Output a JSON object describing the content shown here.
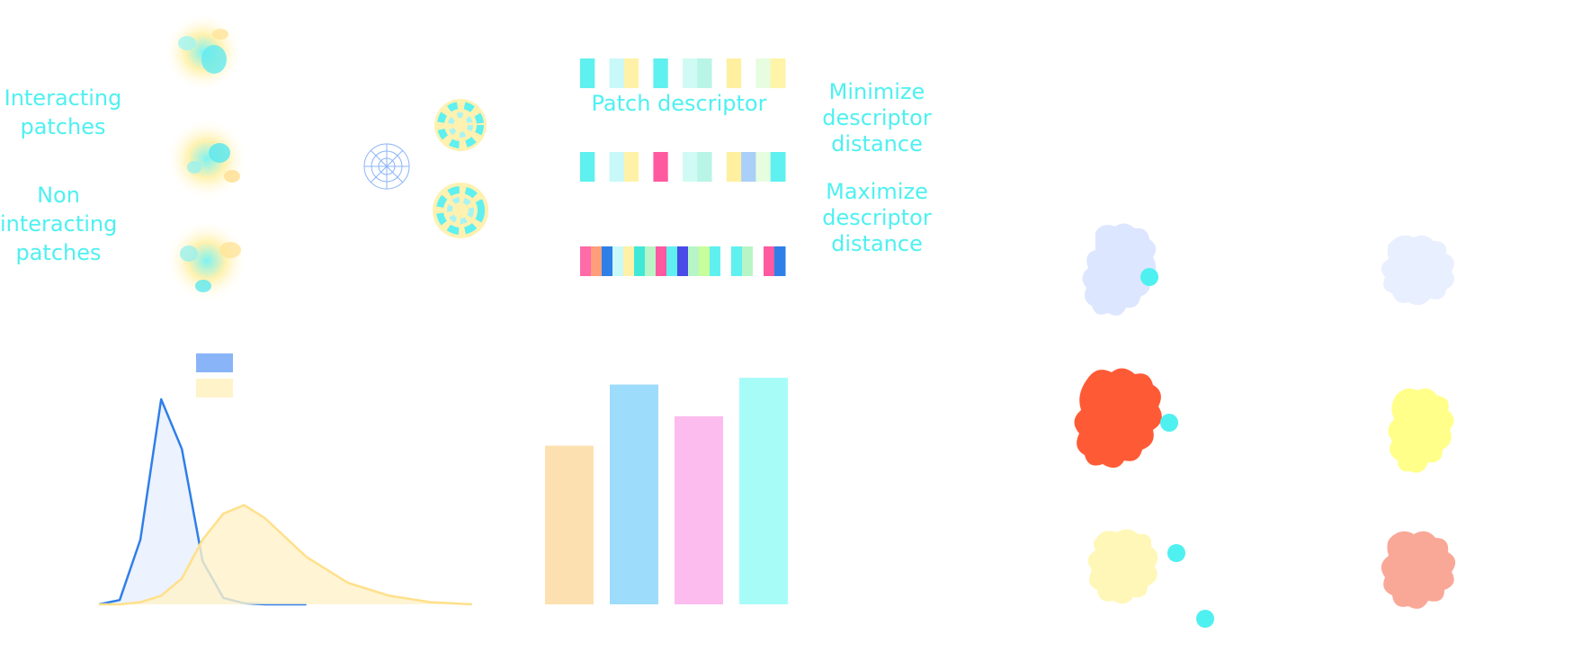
{
  "labels": {
    "interacting": "Interacting\npatches",
    "non_interacting": "Non\ninteracting\npatches",
    "patch_descriptor": "Patch descriptor",
    "minimize": "Minimize\ndescriptor\ndistance",
    "maximize": "Maximize\ndescriptor\ndistance"
  },
  "colors": {
    "accent": "#4ff0f0",
    "blue_line": "#2f7fe8",
    "blue_fill": "#e8efff",
    "yellow_line": "#ffe08a",
    "yellow_fill": "#fff3c9",
    "protein_blue": "#dde6ff",
    "protein_blue_light": "#e8efff",
    "protein_red": "#ff5a36",
    "protein_yellow": "#ffff8a",
    "protein_cream": "#fff7b8",
    "protein_salmon": "#f9a898"
  },
  "descriptors": {
    "row1": [
      "#5ff0f0",
      "#ffffff",
      "#c8f8f8",
      "#fff2a8",
      "#ffffff",
      "#5ff0f0",
      "#ffffff",
      "#d0fbf4",
      "#b8f5e6",
      "#ffffff",
      "#fff0a0",
      "#ffffff",
      "#e6fde0",
      "#fff4a8"
    ],
    "row2": [
      "#5ff0f0",
      "#ffffff",
      "#c8f8f8",
      "#fff2a8",
      "#ffffff",
      "#ff5aa0",
      "#ffffff",
      "#d0fbf4",
      "#b8f5e6",
      "#ffffff",
      "#fff0a0",
      "#aacff8",
      "#e6fde0",
      "#5ff0f0"
    ],
    "row3": [
      "#ff6aa8",
      "#ff9e7a",
      "#2f7fe8",
      "#c8f8f8",
      "#fff2a8",
      "#40e8d8",
      "#b8f5c6",
      "#ff5aa0",
      "#5ff0f0",
      "#4a4ae8",
      "#b8f5c6",
      "#c8ff9a",
      "#5ff0f0",
      "#ffffff",
      "#5ff0f0",
      "#b8f5c6",
      "#ffffff",
      "#ff5aa0",
      "#2f7fe8"
    ]
  },
  "chart_data": [
    {
      "type": "area",
      "series": [
        {
          "color": "#2f7fe8",
          "x": [
            0,
            0.5,
            1.0,
            1.5,
            2.0,
            2.5,
            3.0,
            3.5,
            4.0,
            4.5,
            5.0
          ],
          "y": [
            0,
            0.02,
            0.3,
            0.95,
            0.72,
            0.2,
            0.03,
            0.005,
            0,
            0,
            0
          ]
        },
        {
          "color": "#ffe08a",
          "x": [
            0,
            0.5,
            1.0,
            1.5,
            2.0,
            2.5,
            3.0,
            3.5,
            4.0,
            5.0,
            6.0,
            7.0,
            8.0,
            9.0
          ],
          "y": [
            0,
            0,
            0.01,
            0.04,
            0.12,
            0.3,
            0.42,
            0.46,
            0.4,
            0.22,
            0.1,
            0.04,
            0.01,
            0
          ]
        }
      ],
      "legend": [
        {
          "color": "#8ab4f8"
        },
        {
          "color": "#fff3c9"
        }
      ],
      "legend_position": "top"
    },
    {
      "type": "bar",
      "values": [
        0.7,
        0.97,
        0.83,
        1.0
      ],
      "colors": [
        "#fde0b0",
        "#9edcfc",
        "#fcbcee",
        "#a8fcf8"
      ]
    }
  ]
}
